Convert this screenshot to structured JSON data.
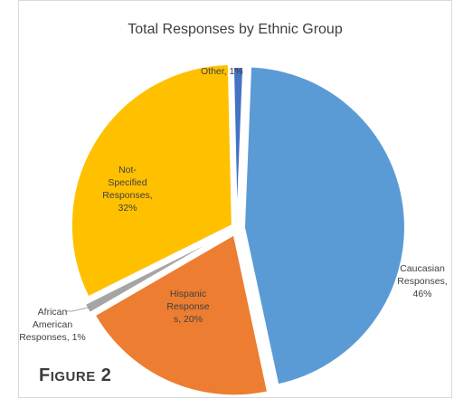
{
  "figure": {
    "first": "F",
    "rest": "IGURE",
    "number": " 2"
  },
  "chart_data": {
    "type": "pie",
    "title": "Total Responses  by Ethnic Group",
    "slices": [
      {
        "key": "caucasian",
        "label_lines": [
          "Caucasian",
          "Responses,",
          "46%"
        ],
        "value": 46,
        "color": "#5b9bd5"
      },
      {
        "key": "hispanic",
        "label_lines": [
          "Hispanic",
          "Response",
          "s, 20%"
        ],
        "value": 20,
        "color": "#ed7d31"
      },
      {
        "key": "african-american",
        "label_lines": [
          "African",
          "American",
          "Responses, 1%"
        ],
        "value": 1,
        "color": "#a5a5a5"
      },
      {
        "key": "not-specified",
        "label_lines": [
          "Not-",
          "Specified",
          "Responses,",
          "32%"
        ],
        "value": 32,
        "color": "#ffc000"
      },
      {
        "key": "other",
        "label_lines": [
          "Other, 1%"
        ],
        "value": 1,
        "color": "#4472c4"
      }
    ]
  }
}
